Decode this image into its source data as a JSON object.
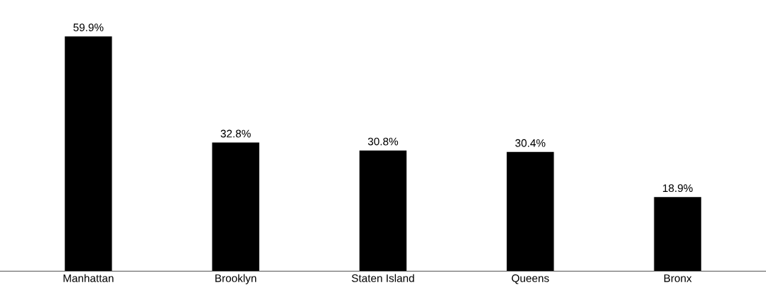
{
  "chart_data": {
    "type": "bar",
    "categories": [
      "Manhattan",
      "Brooklyn",
      "Staten Island",
      "Queens",
      "Bronx"
    ],
    "values": [
      59.9,
      32.8,
      30.8,
      30.4,
      18.9
    ],
    "value_labels": [
      "59.9%",
      "32.8%",
      "30.8%",
      "30.4%",
      "18.9%"
    ],
    "color": "#000000",
    "tick_labels": "x",
    "grid": false,
    "legend": false
  }
}
